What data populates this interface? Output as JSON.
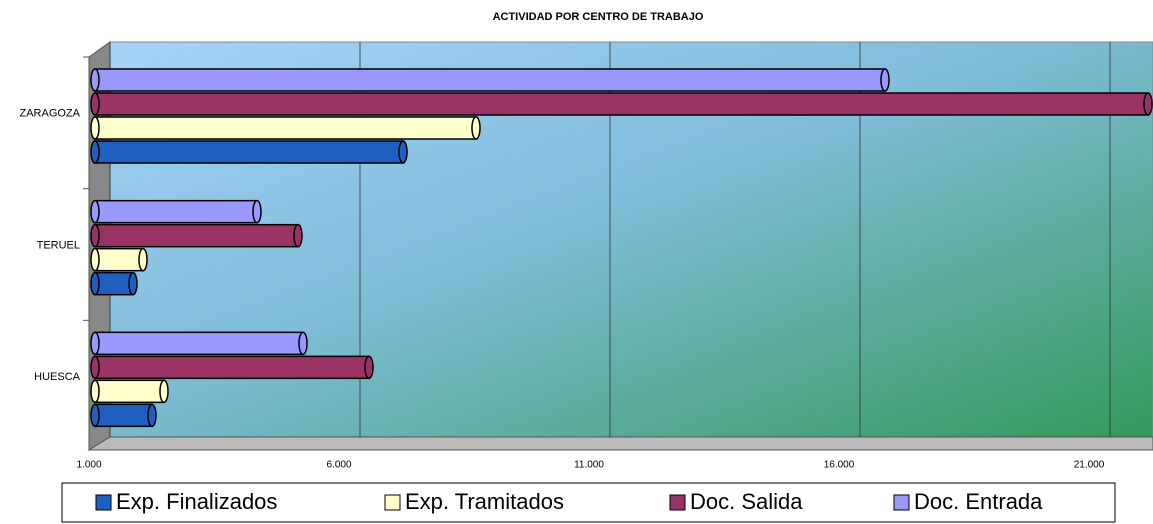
{
  "chart_data": {
    "type": "bar",
    "orientation": "horizontal",
    "title": "ACTIVIDAD POR CENTRO DE TRABAJO",
    "categories": [
      "ZARAGOZA",
      "TERUEL",
      "HUESCA"
    ],
    "series": [
      {
        "name": "Exp. Finalizados",
        "color": "#1f5fc0",
        "values": [
          7160,
          1760,
          2140
        ]
      },
      {
        "name": "Exp. Tramitados",
        "color": "#ffffcc",
        "values": [
          8620,
          1960,
          2380
        ]
      },
      {
        "name": "Doc. Salida",
        "color": "#993366",
        "values": [
          22100,
          5060,
          6480
        ]
      },
      {
        "name": "Doc. Entrada",
        "color": "#9999ff",
        "values": [
          16800,
          4240,
          5160
        ]
      }
    ],
    "xlim": [
      1000,
      22300
    ],
    "xticks": [
      {
        "value": 1000,
        "label": "1.000"
      },
      {
        "value": 6000,
        "label": "6.000"
      },
      {
        "value": 11000,
        "label": "11.000"
      },
      {
        "value": 16000,
        "label": "16.000"
      },
      {
        "value": 21000,
        "label": "21.000"
      }
    ],
    "grid": true,
    "legend": "bottom"
  }
}
